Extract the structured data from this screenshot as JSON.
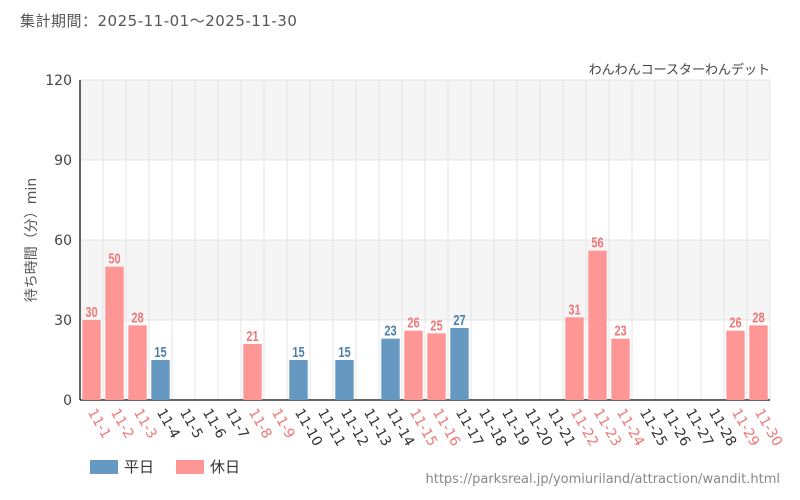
{
  "header": {
    "period_label": "集計期間：",
    "period_start": "2025-11-01",
    "period_sep": "～",
    "period_end": "2025-11-30"
  },
  "colors": {
    "weekday": "#6699c2",
    "holiday": "#ff9696",
    "grid": "#e4e4e4",
    "band": "#f5f5f5"
  },
  "legend": [
    {
      "label": "平日",
      "type": "weekday"
    },
    {
      "label": "休日",
      "type": "holiday"
    }
  ],
  "source": "https://parksreal.jp/yomiuriland/attraction/wandit.html",
  "chart_data": {
    "type": "bar",
    "title": "わんわんコースターわんデット",
    "xlabel": "",
    "ylabel": "待ち時間（分）min",
    "ylim": [
      0,
      120
    ],
    "yticks": [
      0,
      30,
      60,
      90,
      120
    ],
    "categories": [
      "11-1",
      "11-2",
      "11-3",
      "11-4",
      "11-5",
      "11-6",
      "11-7",
      "11-8",
      "11-9",
      "11-10",
      "11-11",
      "11-12",
      "11-13",
      "11-14",
      "11-15",
      "11-16",
      "11-17",
      "11-18",
      "11-19",
      "11-20",
      "11-21",
      "11-22",
      "11-23",
      "11-24",
      "11-25",
      "11-26",
      "11-27",
      "11-28",
      "11-29",
      "11-30"
    ],
    "day_types": [
      "holiday",
      "holiday",
      "holiday",
      "weekday",
      "weekday",
      "weekday",
      "weekday",
      "holiday",
      "holiday",
      "weekday",
      "weekday",
      "weekday",
      "weekday",
      "weekday",
      "holiday",
      "holiday",
      "weekday",
      "weekday",
      "weekday",
      "weekday",
      "weekday",
      "holiday",
      "holiday",
      "holiday",
      "weekday",
      "weekday",
      "weekday",
      "weekday",
      "holiday",
      "holiday"
    ],
    "values": [
      30,
      50,
      28,
      15,
      null,
      null,
      null,
      21,
      null,
      15,
      null,
      15,
      null,
      23,
      26,
      25,
      27,
      null,
      null,
      null,
      null,
      31,
      56,
      23,
      null,
      null,
      null,
      null,
      26,
      28
    ]
  }
}
